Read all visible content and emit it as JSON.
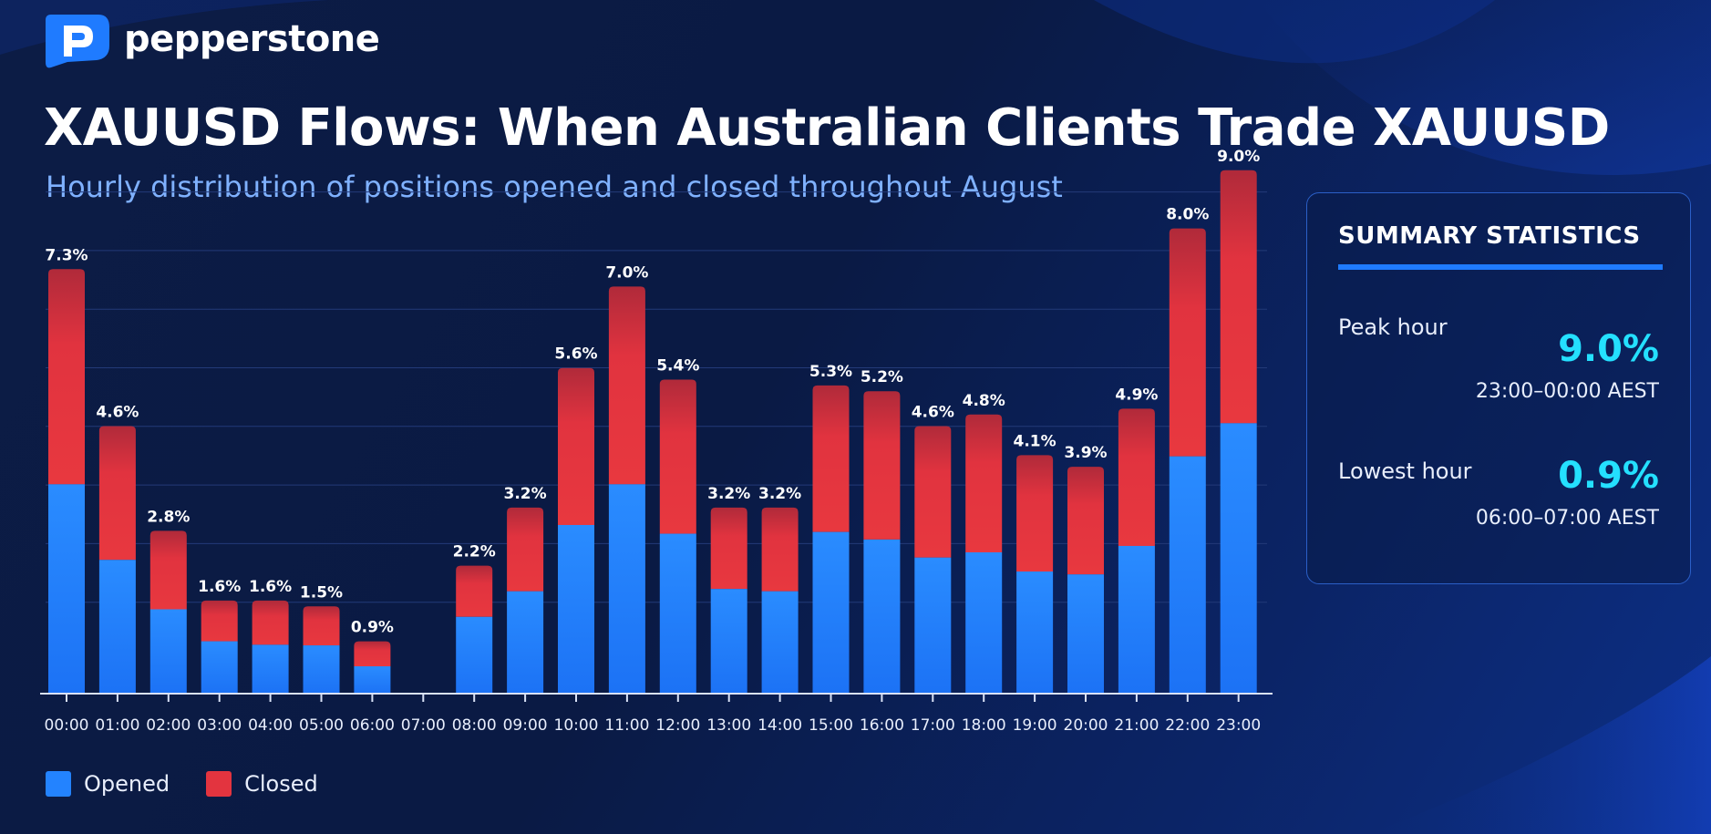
{
  "brand": {
    "name": "pepperstone",
    "logo_color": "#1f7bff"
  },
  "header": {
    "title": "XAUUSD Flows: When Australian Clients Trade XAUUSD",
    "subtitle": "Hourly distribution of positions opened and closed throughout August"
  },
  "colors": {
    "opened": "#2383ff",
    "closed": "#e3343f",
    "accent": "#24e0ff",
    "grid": "#233a78"
  },
  "chart_data": {
    "type": "bar",
    "stacked": true,
    "categories": [
      "00:00",
      "01:00",
      "02:00",
      "03:00",
      "04:00",
      "05:00",
      "06:00",
      "07:00",
      "08:00",
      "09:00",
      "10:00",
      "11:00",
      "12:00",
      "13:00",
      "14:00",
      "15:00",
      "16:00",
      "17:00",
      "18:00",
      "19:00",
      "20:00",
      "21:00",
      "22:00",
      "23:00"
    ],
    "series": [
      {
        "name": "Opened",
        "values": [
          3.6,
          2.3,
          1.45,
          0.9,
          0.84,
          0.83,
          0.47,
          0,
          1.32,
          1.76,
          2.9,
          3.6,
          2.75,
          1.8,
          1.76,
          2.78,
          2.65,
          2.34,
          2.43,
          2.1,
          2.05,
          2.54,
          4.08,
          4.65
        ]
      },
      {
        "name": "Closed",
        "values": [
          3.7,
          2.3,
          1.35,
          0.7,
          0.76,
          0.67,
          0.43,
          0,
          0.88,
          1.44,
          2.7,
          3.4,
          2.65,
          1.4,
          1.44,
          2.52,
          2.55,
          2.26,
          2.37,
          2.0,
          1.85,
          2.36,
          3.92,
          4.35
        ]
      }
    ],
    "totals": [
      7.3,
      4.6,
      2.8,
      1.6,
      1.6,
      1.5,
      0.9,
      0,
      2.2,
      3.2,
      5.6,
      7.0,
      5.4,
      3.2,
      3.2,
      5.3,
      5.2,
      4.6,
      4.8,
      4.1,
      3.9,
      4.9,
      8.0,
      9.0
    ],
    "total_labels": [
      "7.3%",
      "4.6%",
      "2.8%",
      "1.6%",
      "1.6%",
      "1.5%",
      "0.9%",
      "",
      "2.2%",
      "3.2%",
      "5.6%",
      "7.0%",
      "5.4%",
      "3.2%",
      "3.2%",
      "5.3%",
      "5.2%",
      "4.6%",
      "4.8%",
      "4.1%",
      "3.9%",
      "4.9%",
      "8.0%",
      "9.0%"
    ],
    "ylim": [
      0,
      10
    ],
    "grid": true,
    "legend_position": "bottom-left"
  },
  "legend": {
    "opened_label": "Opened",
    "closed_label": "Closed"
  },
  "summary": {
    "title": "SUMMARY STATISTICS",
    "peak_label": "Peak hour",
    "peak_value": "9.0%",
    "peak_range": "23:00–00:00 AEST",
    "lowest_label": "Lowest hour",
    "lowest_value": "0.9%",
    "lowest_range": "06:00–07:00 AEST"
  }
}
